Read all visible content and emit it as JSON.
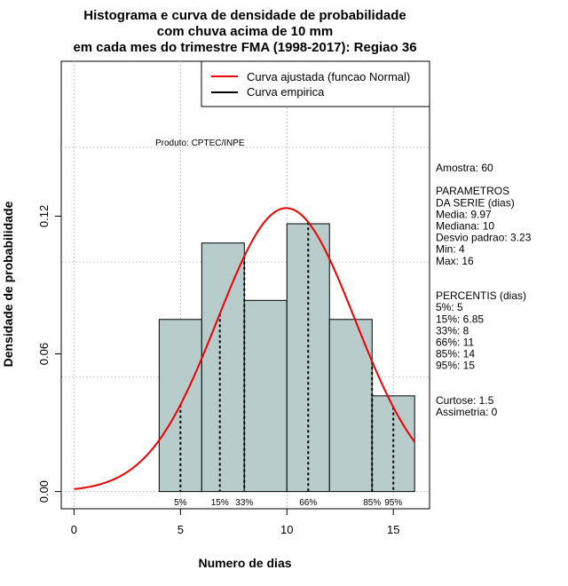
{
  "chart_data": {
    "type": "bar",
    "title_lines": [
      "Histograma e curva de densidade de probabilidade",
      "com chuva acima de 10 mm",
      "em cada mes do trimestre FMA (1998-2017): Regiao 36"
    ],
    "xlabel": "Numero de dias",
    "ylabel": "Densidade de probabilidade",
    "xlim": [
      -0.6,
      16.7
    ],
    "ylim": [
      -0.0075,
      0.1875
    ],
    "x_ticks": [
      0,
      5,
      10,
      15
    ],
    "y_ticks": [
      0.0,
      0.06,
      0.12
    ],
    "y_tick_labels": [
      "0.00",
      "0.06",
      "0.12"
    ],
    "grid": true,
    "bins": [
      {
        "x0": 4,
        "x1": 6,
        "density": 0.075
      },
      {
        "x0": 6,
        "x1": 8,
        "density": 0.1083
      },
      {
        "x0": 8,
        "x1": 10,
        "density": 0.0833
      },
      {
        "x0": 10,
        "x1": 12,
        "density": 0.1167
      },
      {
        "x0": 12,
        "x1": 14,
        "density": 0.075
      },
      {
        "x0": 14,
        "x1": 16,
        "density": 0.0417
      }
    ],
    "bar_color": "#b8cccc",
    "curve": {
      "mean": 9.97,
      "sd": 3.23,
      "x_from": 0,
      "x_to": 16,
      "color": "#ee0000"
    },
    "percentile_lines": [
      {
        "label": "5%",
        "x": 5
      },
      {
        "label": "15%",
        "x": 6.85
      },
      {
        "label": "33%",
        "x": 8
      },
      {
        "label": "66%",
        "x": 11
      },
      {
        "label": "85%",
        "x": 14
      },
      {
        "label": "95%",
        "x": 15
      }
    ],
    "legend": {
      "position": "top-right",
      "items": [
        {
          "label": "Curva ajustada (funcao Normal)",
          "color": "#ee0000"
        },
        {
          "label": "Curva empirica",
          "color": "#000000"
        }
      ]
    },
    "annotation": "Produto: CPTEC/INPE",
    "stats_lines": [
      "Amostra: 60",
      "",
      " PARAMETROS",
      "DA SERIE (dias)",
      "  Media: 9.97",
      "  Mediana: 10",
      "  Desvio padrao: 3.23",
      "  Min: 4",
      "  Max: 16",
      "",
      "",
      "PERCENTIS (dias)",
      "  5%: 5",
      "  15%: 6.85",
      "  33%: 8",
      "  66%: 11",
      "  85%: 14",
      "  95%: 15",
      "",
      "",
      "    Curtose: 1.5",
      "    Assimetria: 0"
    ]
  }
}
